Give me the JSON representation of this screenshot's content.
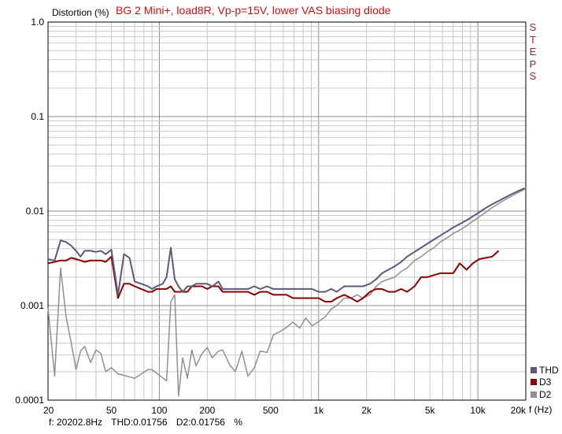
{
  "chart_data": {
    "type": "line",
    "title": "BG 2 Mini+, load8R, Vp-p=15V, lower VAS biasing diode",
    "ylabel": "Distortion (%)",
    "xlabel": "f (Hz)",
    "x_scale": "log",
    "y_scale": "log",
    "xlim": [
      20,
      20000
    ],
    "ylim": [
      0.0001,
      1.0
    ],
    "grid": true,
    "legend_position": "bottom-right",
    "x_ticks": [
      {
        "value": 20,
        "label": "20"
      },
      {
        "value": 50,
        "label": "50"
      },
      {
        "value": 100,
        "label": "100"
      },
      {
        "value": 200,
        "label": "200"
      },
      {
        "value": 500,
        "label": "500"
      },
      {
        "value": 1000,
        "label": "1k"
      },
      {
        "value": 2000,
        "label": "2k"
      },
      {
        "value": 5000,
        "label": "5k"
      },
      {
        "value": 10000,
        "label": "10k"
      },
      {
        "value": 20000,
        "label": "20k"
      }
    ],
    "y_ticks": [
      {
        "value": 1.0,
        "label": "1.0"
      },
      {
        "value": 0.1,
        "label": "0.1"
      },
      {
        "value": 0.01,
        "label": "0.01"
      },
      {
        "value": 0.001,
        "label": "0.001"
      },
      {
        "value": 0.0001,
        "label": "0.0001"
      }
    ],
    "series": [
      {
        "name": "THD",
        "color": "#5a5a7a",
        "points": [
          [
            20,
            0.0031
          ],
          [
            22,
            0.003
          ],
          [
            24,
            0.0049
          ],
          [
            26,
            0.0047
          ],
          [
            28,
            0.0043
          ],
          [
            30,
            0.0038
          ],
          [
            32,
            0.0033
          ],
          [
            34,
            0.0038
          ],
          [
            37,
            0.0038
          ],
          [
            40,
            0.0037
          ],
          [
            43,
            0.0038
          ],
          [
            46,
            0.0035
          ],
          [
            50,
            0.0039
          ],
          [
            55,
            0.0013
          ],
          [
            60,
            0.0035
          ],
          [
            65,
            0.0032
          ],
          [
            70,
            0.0018
          ],
          [
            77,
            0.0017
          ],
          [
            85,
            0.0016
          ],
          [
            90,
            0.0015
          ],
          [
            96,
            0.0016
          ],
          [
            105,
            0.0017
          ],
          [
            111,
            0.002
          ],
          [
            118,
            0.0041
          ],
          [
            125,
            0.0019
          ],
          [
            132,
            0.0016
          ],
          [
            140,
            0.0014
          ],
          [
            150,
            0.0016
          ],
          [
            160,
            0.0016
          ],
          [
            170,
            0.0017
          ],
          [
            185,
            0.0017
          ],
          [
            200,
            0.0017
          ],
          [
            215,
            0.0016
          ],
          [
            235,
            0.0018
          ],
          [
            250,
            0.0015
          ],
          [
            275,
            0.0015
          ],
          [
            300,
            0.0015
          ],
          [
            330,
            0.0015
          ],
          [
            360,
            0.0015
          ],
          [
            395,
            0.0016
          ],
          [
            430,
            0.0015
          ],
          [
            475,
            0.0016
          ],
          [
            520,
            0.0015
          ],
          [
            570,
            0.0015
          ],
          [
            630,
            0.0015
          ],
          [
            690,
            0.0015
          ],
          [
            760,
            0.0015
          ],
          [
            830,
            0.0015
          ],
          [
            910,
            0.0015
          ],
          [
            1000,
            0.0014
          ],
          [
            1100,
            0.0014
          ],
          [
            1200,
            0.0015
          ],
          [
            1300,
            0.0014
          ],
          [
            1450,
            0.0016
          ],
          [
            1600,
            0.0016
          ],
          [
            1750,
            0.0016
          ],
          [
            1900,
            0.0016
          ],
          [
            2100,
            0.0017
          ],
          [
            2300,
            0.0019
          ],
          [
            2500,
            0.0022
          ],
          [
            2750,
            0.0024
          ],
          [
            3000,
            0.0026
          ],
          [
            3300,
            0.0029
          ],
          [
            3600,
            0.0033
          ],
          [
            4000,
            0.0037
          ],
          [
            4400,
            0.0041
          ],
          [
            4800,
            0.0045
          ],
          [
            5300,
            0.005
          ],
          [
            5800,
            0.0055
          ],
          [
            6400,
            0.0061
          ],
          [
            7000,
            0.0067
          ],
          [
            7700,
            0.0073
          ],
          [
            8500,
            0.008
          ],
          [
            9300,
            0.0088
          ],
          [
            10200,
            0.0097
          ],
          [
            11200,
            0.0108
          ],
          [
            12300,
            0.0118
          ],
          [
            13500,
            0.0128
          ],
          [
            14800,
            0.0139
          ],
          [
            16300,
            0.0151
          ],
          [
            17900,
            0.0163
          ],
          [
            19700,
            0.0175
          ]
        ]
      },
      {
        "name": "D3",
        "color": "#8b0000",
        "points": [
          [
            20,
            0.0028
          ],
          [
            22,
            0.0029
          ],
          [
            24,
            0.003
          ],
          [
            26,
            0.003
          ],
          [
            28,
            0.0032
          ],
          [
            30,
            0.0031
          ],
          [
            32,
            0.003
          ],
          [
            34,
            0.0029
          ],
          [
            37,
            0.003
          ],
          [
            40,
            0.003
          ],
          [
            43,
            0.003
          ],
          [
            46,
            0.0029
          ],
          [
            50,
            0.0033
          ],
          [
            55,
            0.0012
          ],
          [
            60,
            0.0017
          ],
          [
            65,
            0.0017
          ],
          [
            70,
            0.0016
          ],
          [
            77,
            0.0015
          ],
          [
            85,
            0.0014
          ],
          [
            90,
            0.0014
          ],
          [
            96,
            0.0015
          ],
          [
            105,
            0.0015
          ],
          [
            111,
            0.0015
          ],
          [
            118,
            0.0016
          ],
          [
            125,
            0.0014
          ],
          [
            132,
            0.0014
          ],
          [
            140,
            0.0014
          ],
          [
            150,
            0.0014
          ],
          [
            160,
            0.0016
          ],
          [
            170,
            0.0016
          ],
          [
            185,
            0.0016
          ],
          [
            200,
            0.0015
          ],
          [
            215,
            0.0016
          ],
          [
            235,
            0.0016
          ],
          [
            250,
            0.0014
          ],
          [
            275,
            0.0014
          ],
          [
            300,
            0.0014
          ],
          [
            330,
            0.0014
          ],
          [
            360,
            0.0014
          ],
          [
            395,
            0.0013
          ],
          [
            430,
            0.0014
          ],
          [
            475,
            0.0014
          ],
          [
            520,
            0.0013
          ],
          [
            570,
            0.0013
          ],
          [
            630,
            0.0013
          ],
          [
            690,
            0.0012
          ],
          [
            760,
            0.0012
          ],
          [
            830,
            0.0012
          ],
          [
            910,
            0.0012
          ],
          [
            1000,
            0.0012
          ],
          [
            1100,
            0.0011
          ],
          [
            1200,
            0.0011
          ],
          [
            1300,
            0.0012
          ],
          [
            1450,
            0.0013
          ],
          [
            1600,
            0.0012
          ],
          [
            1750,
            0.0011
          ],
          [
            1900,
            0.0012
          ],
          [
            2100,
            0.0014
          ],
          [
            2300,
            0.0015
          ],
          [
            2500,
            0.0015
          ],
          [
            2750,
            0.0014
          ],
          [
            3000,
            0.0014
          ],
          [
            3300,
            0.0015
          ],
          [
            3600,
            0.0014
          ],
          [
            4000,
            0.0016
          ],
          [
            4400,
            0.002
          ],
          [
            4800,
            0.002
          ],
          [
            5300,
            0.0021
          ],
          [
            5800,
            0.0022
          ],
          [
            6400,
            0.0022
          ],
          [
            7000,
            0.0022
          ],
          [
            7700,
            0.0028
          ],
          [
            8500,
            0.0024
          ],
          [
            9300,
            0.0028
          ],
          [
            10200,
            0.0031
          ],
          [
            11200,
            0.0032
          ],
          [
            12300,
            0.0033
          ],
          [
            13500,
            0.0038
          ]
        ]
      },
      {
        "name": "D2",
        "color": "#909090",
        "points": [
          [
            20,
            0.00095
          ],
          [
            22,
            0.00018
          ],
          [
            24,
            0.0025
          ],
          [
            26,
            0.00075
          ],
          [
            28,
            0.0004
          ],
          [
            30,
            0.00021
          ],
          [
            32,
            0.00033
          ],
          [
            34,
            0.00037
          ],
          [
            37,
            0.00025
          ],
          [
            40,
            0.00034
          ],
          [
            43,
            0.00031
          ],
          [
            46,
            0.0002
          ],
          [
            50,
            0.00022
          ],
          [
            55,
            0.00019
          ],
          [
            60,
            7.5e-05
          ],
          [
            65,
            8e-05
          ],
          [
            70,
            0.00017
          ],
          [
            77,
            9e-05
          ],
          [
            85,
            0.00021
          ],
          [
            90,
            0.00021
          ],
          [
            96,
            8e-05
          ],
          [
            105,
            8e-05
          ],
          [
            111,
            0.00016
          ],
          [
            118,
            0.0011
          ],
          [
            125,
            0.0013
          ],
          [
            132,
            0.00011
          ],
          [
            140,
            0.00028
          ],
          [
            150,
            0.00017
          ],
          [
            160,
            0.00034
          ],
          [
            170,
            0.00023
          ],
          [
            185,
            0.00031
          ],
          [
            200,
            0.00036
          ],
          [
            215,
            0.00028
          ],
          [
            235,
            0.00033
          ],
          [
            250,
            0.00034
          ],
          [
            275,
            0.00024
          ],
          [
            300,
            0.0002
          ],
          [
            330,
            0.00033
          ],
          [
            360,
            0.00018
          ],
          [
            395,
            0.00022
          ],
          [
            430,
            0.00033
          ],
          [
            475,
            0.00032
          ],
          [
            520,
            0.00049
          ],
          [
            570,
            0.00053
          ],
          [
            630,
            0.00059
          ],
          [
            690,
            0.00067
          ],
          [
            760,
            0.00058
          ],
          [
            830,
            0.00074
          ],
          [
            910,
            0.00061
          ],
          [
            1000,
            0.00068
          ],
          [
            1100,
            0.00076
          ],
          [
            1200,
            0.00092
          ],
          [
            1300,
            0.001
          ],
          [
            1450,
            0.0012
          ],
          [
            1600,
            0.0012
          ],
          [
            1750,
            0.0013
          ],
          [
            1900,
            0.0012
          ],
          [
            2100,
            0.0013
          ],
          [
            2300,
            0.0016
          ],
          [
            2500,
            0.0018
          ],
          [
            2750,
            0.0019
          ],
          [
            3000,
            0.002
          ],
          [
            3300,
            0.0023
          ],
          [
            3600,
            0.0025
          ],
          [
            4000,
            0.003
          ],
          [
            4400,
            0.0033
          ],
          [
            4800,
            0.0037
          ],
          [
            5300,
            0.0041
          ],
          [
            5800,
            0.0047
          ],
          [
            6400,
            0.0052
          ],
          [
            7000,
            0.0058
          ],
          [
            7700,
            0.0063
          ],
          [
            8500,
            0.007
          ],
          [
            9300,
            0.0078
          ],
          [
            10200,
            0.0087
          ],
          [
            11200,
            0.0097
          ],
          [
            12300,
            0.0109
          ],
          [
            13500,
            0.012
          ],
          [
            14800,
            0.0132
          ],
          [
            16300,
            0.0144
          ],
          [
            17900,
            0.0157
          ],
          [
            19700,
            0.017
          ]
        ]
      }
    ]
  },
  "header": {
    "ylabel": "Distortion (%)",
    "title": "BG 2 Mini+, load8R, Vp-p=15V, lower VAS biasing diode",
    "steps": [
      "S",
      "T",
      "E",
      "P",
      "S"
    ]
  },
  "legend": [
    {
      "label": "THD",
      "color": "#5a5a7a"
    },
    {
      "label": "D3",
      "color": "#8b0000"
    },
    {
      "label": "D2",
      "color": "#909090"
    }
  ],
  "status": {
    "freq": "f: 20202.8Hz",
    "thd": "THD:0.01756",
    "d2": "D2:0.01756",
    "unit": "%"
  },
  "x_unit": "f (Hz)"
}
